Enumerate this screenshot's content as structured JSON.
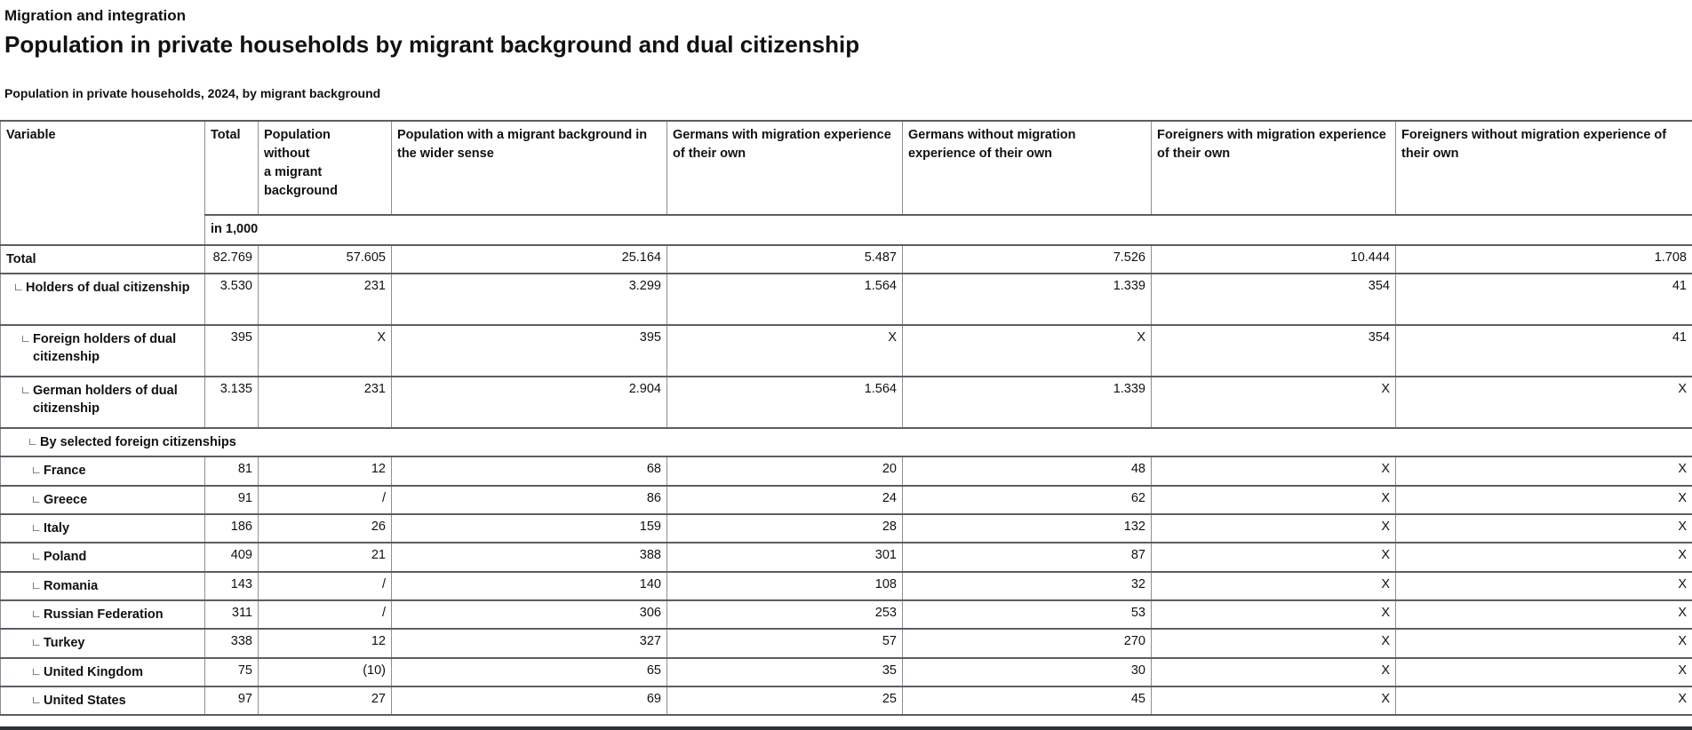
{
  "page": {
    "kicker": "Migration and integration",
    "title": "Population in private households by migrant background and dual citizenship",
    "subtitle": "Population in private households, 2024, by migrant background"
  },
  "table": {
    "indent_marker": "∟",
    "unit_label": "in 1,000",
    "columns": [
      "Variable",
      "Total",
      "Population\nwithout\na migrant\nbackground",
      "Population with a migrant background in the wider sense",
      "Germans with migration experience of their own",
      "Germans without migration experience of their own",
      "Foreigners with migration experience of their own",
      "Foreigners without migration experience of their own"
    ],
    "rows": [
      {
        "label": "Total",
        "level": 0,
        "two_line": false,
        "values": [
          "82.769",
          "57.605",
          "25.164",
          "5.487",
          "7.526",
          "10.444",
          "1.708"
        ]
      },
      {
        "label": "Holders of dual citizenship",
        "level": 1,
        "two_line": true,
        "values": [
          "3.530",
          "231",
          "3.299",
          "1.564",
          "1.339",
          "354",
          "41"
        ]
      },
      {
        "label": "Foreign holders of dual citizenship",
        "level": 2,
        "two_line": true,
        "values": [
          "395",
          "X",
          "395",
          "X",
          "X",
          "354",
          "41"
        ]
      },
      {
        "label": "German holders of dual citizenship",
        "level": 2,
        "two_line": true,
        "values": [
          "3.135",
          "231",
          "2.904",
          "1.564",
          "1.339",
          "X",
          "X"
        ]
      },
      {
        "label": "By selected foreign citizenships",
        "level": "2b",
        "section": true
      },
      {
        "label": "France",
        "level": 3,
        "two_line": false,
        "values": [
          "81",
          "12",
          "68",
          "20",
          "48",
          "X",
          "X"
        ]
      },
      {
        "label": "Greece",
        "level": 3,
        "two_line": false,
        "values": [
          "91",
          "/",
          "86",
          "24",
          "62",
          "X",
          "X"
        ]
      },
      {
        "label": "Italy",
        "level": 3,
        "two_line": false,
        "values": [
          "186",
          "26",
          "159",
          "28",
          "132",
          "X",
          "X"
        ]
      },
      {
        "label": "Poland",
        "level": 3,
        "two_line": false,
        "values": [
          "409",
          "21",
          "388",
          "301",
          "87",
          "X",
          "X"
        ]
      },
      {
        "label": "Romania",
        "level": 3,
        "two_line": false,
        "values": [
          "143",
          "/",
          "140",
          "108",
          "32",
          "X",
          "X"
        ]
      },
      {
        "label": "Russian Federation",
        "level": 3,
        "two_line": false,
        "values": [
          "311",
          "/",
          "306",
          "253",
          "53",
          "X",
          "X"
        ]
      },
      {
        "label": "Turkey",
        "level": 3,
        "two_line": false,
        "values": [
          "338",
          "12",
          "327",
          "57",
          "270",
          "X",
          "X"
        ]
      },
      {
        "label": "United Kingdom",
        "level": 3,
        "two_line": false,
        "values": [
          "75",
          "(10)",
          "65",
          "35",
          "30",
          "X",
          "X"
        ]
      },
      {
        "label": "United States",
        "level": 3,
        "two_line": false,
        "values": [
          "97",
          "27",
          "69",
          "25",
          "45",
          "X",
          "X"
        ]
      }
    ]
  },
  "colors": {
    "border_vertical": "#8a9095",
    "border_horizontal": "#5a5e63",
    "bottom_bar": "#2c3037",
    "text": "#111111"
  }
}
